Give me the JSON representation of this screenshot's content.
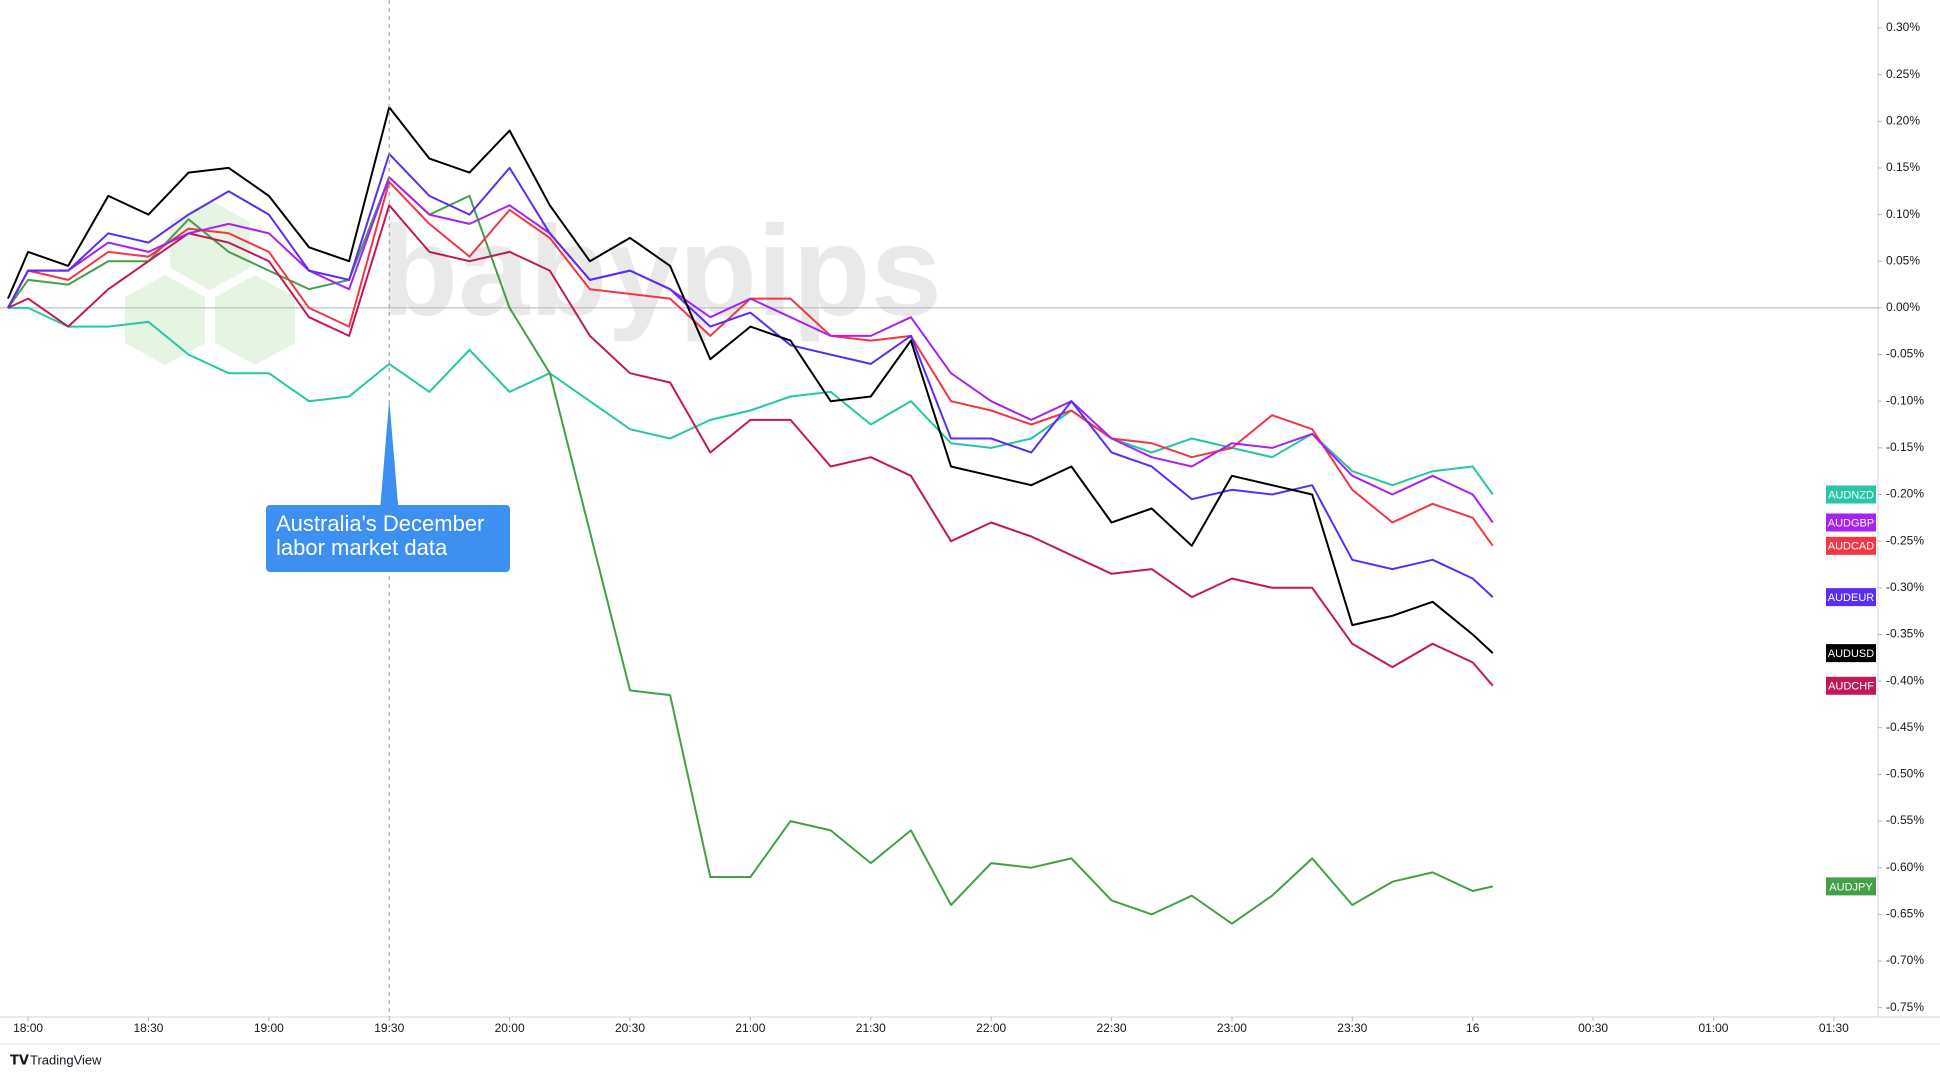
{
  "chart_data": {
    "type": "line",
    "watermark": "babypips",
    "brand": "TradingView",
    "annotation": {
      "lines": [
        "Australia's December",
        "labor market data"
      ],
      "x": 90
    },
    "x": [
      -5,
      0,
      10,
      20,
      30,
      40,
      50,
      60,
      70,
      80,
      90,
      100,
      110,
      120,
      130,
      140,
      150,
      160,
      170,
      180,
      190,
      200,
      210,
      220,
      230,
      240,
      250,
      260,
      270,
      280,
      290,
      300,
      310,
      320,
      330,
      340,
      350,
      360,
      365
    ],
    "xlim": [
      -7,
      461
    ],
    "xticks": [
      {
        "value": 0,
        "label": "18:00"
      },
      {
        "value": 30,
        "label": "18:30"
      },
      {
        "value": 60,
        "label": "19:00"
      },
      {
        "value": 90,
        "label": "19:30"
      },
      {
        "value": 120,
        "label": "20:00"
      },
      {
        "value": 150,
        "label": "20:30"
      },
      {
        "value": 180,
        "label": "21:00"
      },
      {
        "value": 210,
        "label": "21:30"
      },
      {
        "value": 240,
        "label": "22:00"
      },
      {
        "value": 270,
        "label": "22:30"
      },
      {
        "value": 300,
        "label": "23:00"
      },
      {
        "value": 330,
        "label": "23:30"
      },
      {
        "value": 360,
        "label": "16"
      },
      {
        "value": 390,
        "label": "00:30"
      },
      {
        "value": 420,
        "label": "01:00"
      },
      {
        "value": 450,
        "label": "01:30"
      }
    ],
    "ylim": [
      -0.76,
      0.33
    ],
    "yticks": [
      {
        "value": 0.3,
        "label": "0.30%"
      },
      {
        "value": 0.25,
        "label": "0.25%"
      },
      {
        "value": 0.2,
        "label": "0.20%"
      },
      {
        "value": 0.15,
        "label": "0.15%"
      },
      {
        "value": 0.1,
        "label": "0.10%"
      },
      {
        "value": 0.05,
        "label": "0.05%"
      },
      {
        "value": 0,
        "label": "0.00%"
      },
      {
        "value": -0.05,
        "label": "-0.05%"
      },
      {
        "value": -0.1,
        "label": "-0.10%"
      },
      {
        "value": -0.15,
        "label": "-0.15%"
      },
      {
        "value": -0.2,
        "label": "-0.20%"
      },
      {
        "value": -0.25,
        "label": "-0.25%"
      },
      {
        "value": -0.3,
        "label": "-0.30%"
      },
      {
        "value": -0.35,
        "label": "-0.35%"
      },
      {
        "value": -0.4,
        "label": "-0.40%"
      },
      {
        "value": -0.45,
        "label": "-0.45%"
      },
      {
        "value": -0.5,
        "label": "-0.50%"
      },
      {
        "value": -0.55,
        "label": "-0.55%"
      },
      {
        "value": -0.6,
        "label": "-0.60%"
      },
      {
        "value": -0.65,
        "label": "-0.65%"
      },
      {
        "value": -0.7,
        "label": "-0.70%"
      },
      {
        "value": -0.75,
        "label": "-0.75%"
      }
    ],
    "grid": false,
    "series": [
      {
        "name": "AUDNZD",
        "color": "#26c6a6",
        "values": [
          0,
          0,
          -0.02,
          -0.02,
          -0.015,
          -0.05,
          -0.07,
          -0.07,
          -0.1,
          -0.095,
          -0.06,
          -0.09,
          -0.045,
          -0.09,
          -0.07,
          -0.1,
          -0.13,
          -0.14,
          -0.12,
          -0.11,
          -0.095,
          -0.09,
          -0.125,
          -0.1,
          -0.145,
          -0.15,
          -0.14,
          -0.11,
          -0.14,
          -0.155,
          -0.14,
          -0.15,
          -0.16,
          -0.135,
          -0.175,
          -0.19,
          -0.175,
          -0.17,
          -0.2
        ]
      },
      {
        "name": "AUDJPY",
        "color": "#43a047",
        "values": [
          0,
          0.03,
          0.025,
          0.05,
          0.05,
          0.095,
          0.06,
          0.04,
          0.02,
          0.03,
          0.14,
          0.1,
          0.12,
          0,
          -0.07,
          -0.24,
          -0.41,
          -0.415,
          -0.61,
          -0.61,
          -0.55,
          -0.56,
          -0.595,
          -0.56,
          -0.64,
          -0.595,
          -0.6,
          -0.59,
          -0.635,
          -0.65,
          -0.63,
          -0.66,
          -0.63,
          -0.59,
          -0.64,
          -0.615,
          -0.605,
          -0.625,
          -0.62
        ]
      },
      {
        "name": "AUDCHF",
        "color": "#c2185b",
        "values": [
          0,
          0.01,
          -0.02,
          0.02,
          0.05,
          0.08,
          0.07,
          0.05,
          -0.01,
          -0.03,
          0.11,
          0.06,
          0.05,
          0.06,
          0.04,
          -0.03,
          -0.07,
          -0.08,
          -0.155,
          -0.12,
          -0.12,
          -0.17,
          -0.16,
          -0.18,
          -0.25,
          -0.23,
          -0.245,
          -0.265,
          -0.285,
          -0.28,
          -0.31,
          -0.29,
          -0.3,
          -0.3,
          -0.36,
          -0.385,
          -0.36,
          -0.38,
          -0.405
        ]
      },
      {
        "name": "AUDCAD",
        "color": "#f23645",
        "values": [
          0,
          0.04,
          0.03,
          0.06,
          0.055,
          0.085,
          0.08,
          0.06,
          0,
          -0.02,
          0.135,
          0.09,
          0.055,
          0.105,
          0.075,
          0.02,
          0.015,
          0.01,
          -0.03,
          0.01,
          0.01,
          -0.03,
          -0.035,
          -0.03,
          -0.1,
          -0.11,
          -0.125,
          -0.11,
          -0.14,
          -0.145,
          -0.16,
          -0.15,
          -0.115,
          -0.13,
          -0.195,
          -0.23,
          -0.21,
          -0.225,
          -0.255
        ]
      },
      {
        "name": "AUDGBP",
        "color": "#a821f2",
        "values": [
          0,
          0.04,
          0.04,
          0.07,
          0.06,
          0.08,
          0.09,
          0.08,
          0.04,
          0.02,
          0.14,
          0.1,
          0.09,
          0.11,
          0.08,
          0.03,
          0.04,
          0.02,
          -0.01,
          0.01,
          -0.01,
          -0.03,
          -0.03,
          -0.01,
          -0.07,
          -0.1,
          -0.12,
          -0.1,
          -0.14,
          -0.16,
          -0.17,
          -0.145,
          -0.15,
          -0.135,
          -0.18,
          -0.2,
          -0.18,
          -0.2,
          -0.23
        ]
      },
      {
        "name": "AUDEUR",
        "color": "#5b2cf5",
        "values": [
          0,
          0.04,
          0.04,
          0.08,
          0.07,
          0.1,
          0.125,
          0.1,
          0.04,
          0.03,
          0.165,
          0.12,
          0.1,
          0.15,
          0.08,
          0.03,
          0.04,
          0.02,
          -0.02,
          -0.005,
          -0.04,
          -0.05,
          -0.06,
          -0.03,
          -0.14,
          -0.14,
          -0.155,
          -0.1,
          -0.155,
          -0.17,
          -0.205,
          -0.195,
          -0.2,
          -0.19,
          -0.27,
          -0.28,
          -0.27,
          -0.29,
          -0.31
        ]
      },
      {
        "name": "AUDUSD",
        "color": "#000000",
        "values": [
          0.01,
          0.06,
          0.045,
          0.12,
          0.1,
          0.145,
          0.15,
          0.12,
          0.065,
          0.05,
          0.215,
          0.16,
          0.145,
          0.19,
          0.11,
          0.05,
          0.075,
          0.045,
          -0.055,
          -0.02,
          -0.035,
          -0.1,
          -0.095,
          -0.035,
          -0.17,
          -0.18,
          -0.19,
          -0.17,
          -0.23,
          -0.215,
          -0.255,
          -0.18,
          -0.19,
          -0.2,
          -0.34,
          -0.33,
          -0.315,
          -0.35,
          -0.37
        ]
      }
    ]
  }
}
